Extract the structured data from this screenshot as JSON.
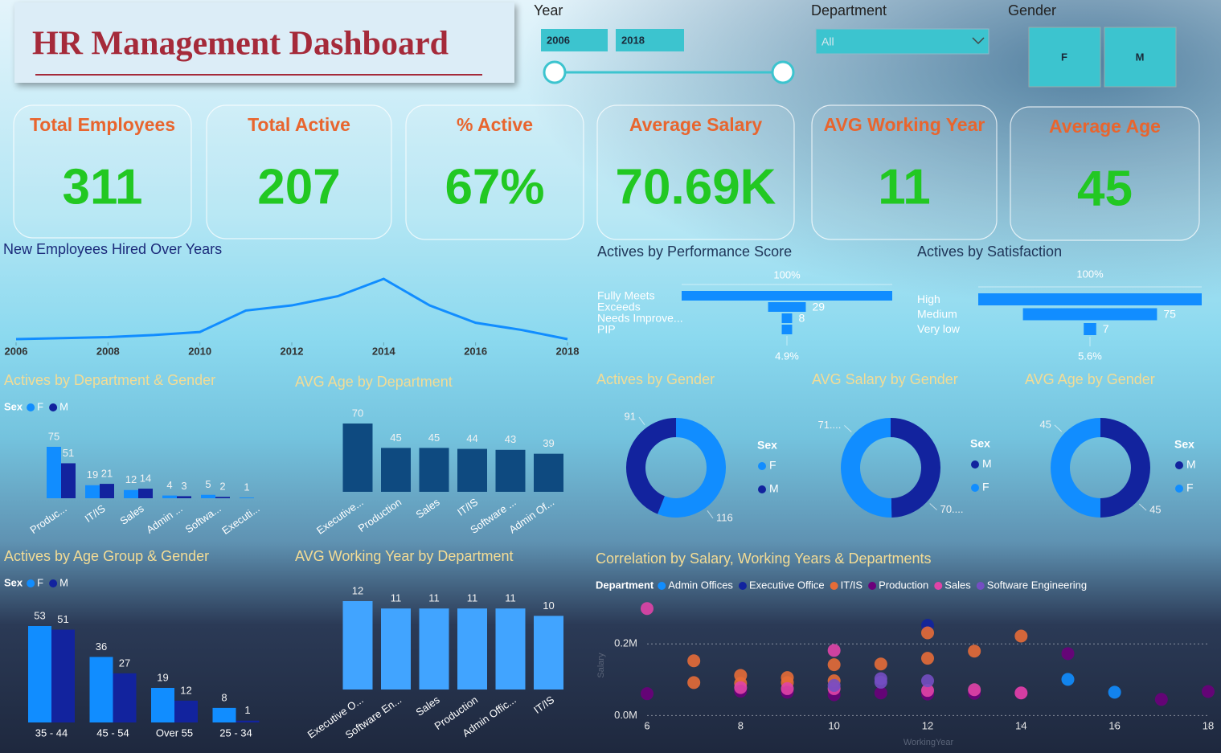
{
  "header": {
    "title": "HR Management Dashboard"
  },
  "filters": {
    "year": {
      "label": "Year",
      "start": "2006",
      "end": "2018"
    },
    "department": {
      "label": "Department",
      "selected": "All"
    },
    "gender": {
      "label": "Gender",
      "options": [
        "F",
        "M"
      ]
    }
  },
  "kpis": [
    {
      "label": "Total Employees",
      "value": "311"
    },
    {
      "label": "Total Active",
      "value": "207"
    },
    {
      "label": "% Active",
      "value": "67%"
    },
    {
      "label": "Average Salary",
      "value": "70.69K"
    },
    {
      "label": "AVG Working Year",
      "value": "11"
    },
    {
      "label": "Average Age",
      "value": "45"
    }
  ],
  "chart_data": [
    {
      "type": "line",
      "title": "New Employees Hired Over Years",
      "x": [
        2006,
        2007,
        2008,
        2009,
        2010,
        2011,
        2012,
        2013,
        2014,
        2015,
        2016,
        2017,
        2018
      ],
      "values": [
        1,
        2,
        3,
        5,
        8,
        29,
        34,
        43,
        60,
        34,
        17,
        10,
        1
      ],
      "color": "#118dff",
      "xlim": [
        2006,
        2018
      ],
      "xticks": [
        2006,
        2008,
        2010,
        2012,
        2014,
        2016,
        2018
      ]
    },
    {
      "type": "funnel",
      "title": "Actives by Performance Score",
      "categories": [
        "Fully Meets",
        "Exceeds",
        "Needs Improve...",
        "PIP"
      ],
      "values": [
        162,
        29,
        8,
        8
      ],
      "value_labels": [
        null,
        "29",
        "8",
        null
      ],
      "top_label": "100%",
      "bottom_label": "4.9%",
      "color": "#118dff"
    },
    {
      "type": "funnel",
      "title": "Actives by Satisfaction",
      "categories": [
        "High",
        "Medium",
        "Very low"
      ],
      "values": [
        125,
        75,
        7
      ],
      "value_labels": [
        null,
        "75",
        "7"
      ],
      "top_label": "100%",
      "bottom_label": "5.6%",
      "color": "#118dff"
    },
    {
      "type": "bar",
      "title": "Actives by Department & Gender",
      "legend_title": "Sex",
      "categories": [
        "Produc...",
        "IT/IS",
        "Sales",
        "Admin ...",
        "Softwa...",
        "Executi..."
      ],
      "series": [
        {
          "name": "F",
          "color": "#118dff",
          "values": [
            75,
            19,
            12,
            4,
            5,
            1
          ]
        },
        {
          "name": "M",
          "color": "#12239e",
          "values": [
            51,
            21,
            14,
            3,
            2,
            null
          ]
        }
      ]
    },
    {
      "type": "bar",
      "title": "AVG Age by Department",
      "categories": [
        "Executive...",
        "Production",
        "Sales",
        "IT/IS",
        "Software ...",
        "Admin Of..."
      ],
      "values": [
        70,
        45,
        45,
        44,
        43,
        39
      ],
      "color": "#0e4a80"
    },
    {
      "type": "bar",
      "title": "Actives by Age Group & Gender",
      "legend_title": "Sex",
      "categories": [
        "35 - 44",
        "45 - 54",
        "Over 55",
        "25 - 34"
      ],
      "series": [
        {
          "name": "F",
          "color": "#118dff",
          "values": [
            53,
            36,
            19,
            8
          ]
        },
        {
          "name": "M",
          "color": "#12239e",
          "values": [
            51,
            27,
            12,
            1
          ]
        }
      ]
    },
    {
      "type": "bar",
      "title": "AVG Working Year by Department",
      "categories": [
        "Executive O...",
        "Software En...",
        "Sales",
        "Production",
        "Admin Offic...",
        "IT/IS"
      ],
      "values": [
        12,
        11,
        11,
        11,
        11,
        10
      ],
      "color": "#41a4ff"
    },
    {
      "type": "pie",
      "title": "Actives by Gender",
      "legend_title": "Sex",
      "categories": [
        "F",
        "M"
      ],
      "values": [
        116,
        91
      ],
      "colors": [
        "#118dff",
        "#12239e"
      ]
    },
    {
      "type": "pie",
      "title": "AVG Salary by Gender",
      "legend_title": "Sex",
      "categories": [
        "M",
        "F"
      ],
      "values": [
        70200,
        71100
      ],
      "value_labels": [
        "70....",
        "71...."
      ],
      "colors": [
        "#12239e",
        "#118dff"
      ]
    },
    {
      "type": "pie",
      "title": "AVG Age by Gender",
      "legend_title": "Sex",
      "categories": [
        "M",
        "F"
      ],
      "values": [
        45,
        45
      ],
      "colors": [
        "#12239e",
        "#118dff"
      ]
    },
    {
      "type": "scatter",
      "title": "Correlation by Salary, Working Years & Departments",
      "legend_title": "Department",
      "x_label": "WorkingYear",
      "y_label": "Salary",
      "xlim": [
        6,
        18
      ],
      "xticks": [
        6,
        8,
        10,
        12,
        14,
        16,
        18
      ],
      "ylim": [
        -33000,
        340000
      ],
      "yticks": [
        {
          "value": 0,
          "label": "0.0M"
        },
        {
          "value": 200000,
          "label": "0.2M"
        }
      ],
      "grid": true,
      "series": [
        {
          "name": "Admin Offices",
          "color": "#118dff",
          "x": [
            15,
            16
          ],
          "values": [
            101000,
            65000
          ]
        },
        {
          "name": "Executive Office",
          "color": "#12239e",
          "x": [
            12
          ],
          "values": [
            252000
          ]
        },
        {
          "name": "IT/IS",
          "color": "#e66c37",
          "x": [
            7,
            7,
            8,
            8,
            9,
            9,
            10,
            10,
            11,
            12,
            12,
            13,
            14
          ],
          "values": [
            153000,
            92000,
            112000,
            90000,
            106000,
            92000,
            142000,
            97000,
            144000,
            160000,
            231000,
            180000,
            222000
          ]
        },
        {
          "name": "Production",
          "color": "#6b007b",
          "x": [
            6,
            8,
            9,
            10,
            11,
            12,
            13,
            14,
            15,
            17,
            18
          ],
          "values": [
            61000,
            68000,
            65000,
            58000,
            63000,
            60000,
            62000,
            63000,
            173000,
            45000,
            67000
          ]
        },
        {
          "name": "Sales",
          "color": "#e044a7",
          "x": [
            6,
            8,
            9,
            10,
            10,
            12,
            13,
            14
          ],
          "values": [
            299000,
            78000,
            75000,
            182000,
            75000,
            70000,
            72000,
            63000
          ]
        },
        {
          "name": "Software Engineering",
          "color": "#744ec2",
          "x": [
            10,
            11,
            11,
            12
          ],
          "values": [
            84000,
            103000,
            93000,
            97000
          ]
        }
      ]
    }
  ]
}
